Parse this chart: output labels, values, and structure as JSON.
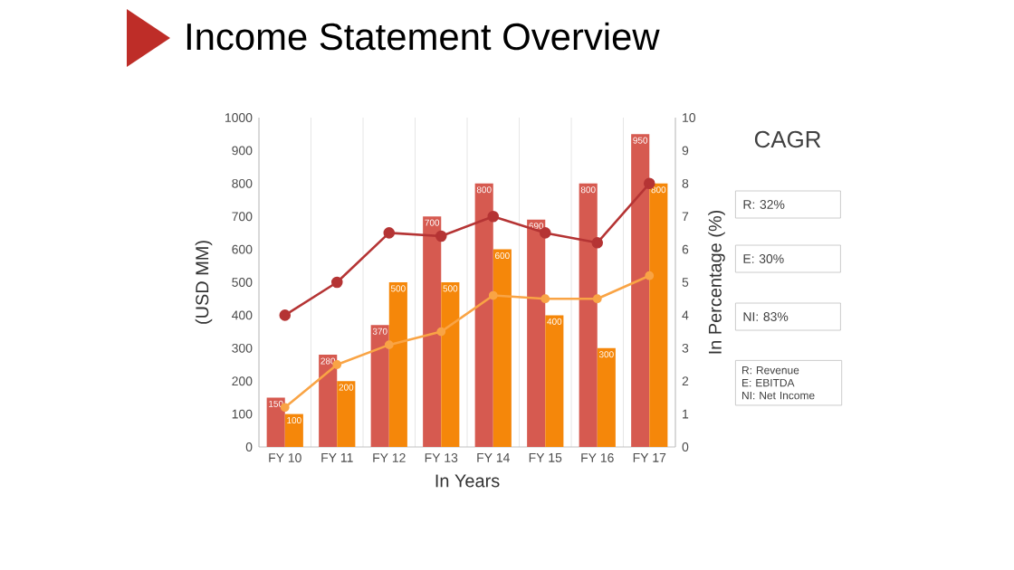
{
  "chart_data": {
    "type": "bar",
    "title": "Income Statement Overview",
    "xlabel": "In Years",
    "ylabel": "(USD MM)",
    "y2label": "In Percentage (%)",
    "categories": [
      "FY 10",
      "FY 11",
      "FY 12",
      "FY 13",
      "FY 14",
      "FY 15",
      "FY 16",
      "FY 17"
    ],
    "series": [
      {
        "color": "#d65a50",
        "values": [
          150,
          280,
          370,
          700,
          800,
          690,
          800,
          950
        ],
        "value_labels": [
          "150",
          "280",
          "370",
          "700",
          "800",
          "690",
          "800",
          "950"
        ]
      },
      {
        "color": "#f5870a",
        "values": [
          100,
          200,
          500,
          500,
          600,
          400,
          300,
          800
        ],
        "value_labels": [
          "100",
          "200",
          "500",
          "500",
          "600",
          "400",
          "300",
          "800"
        ]
      },
      {
        "type": "line",
        "axis": "y2",
        "color": "#b53434",
        "values": [
          4,
          5,
          6.5,
          6.4,
          7,
          6.5,
          6.2,
          8
        ]
      },
      {
        "type": "line",
        "axis": "y2",
        "color": "#f9a445",
        "values": [
          1.2,
          2.5,
          3.1,
          3.5,
          4.6,
          4.5,
          4.5,
          5.2
        ]
      }
    ],
    "ylim": [
      0,
      1000
    ],
    "yticks": [
      0,
      100,
      200,
      300,
      400,
      500,
      600,
      700,
      800,
      900,
      1000
    ],
    "y2lim": [
      0,
      10
    ],
    "y2ticks": [
      0,
      1,
      2,
      3,
      4,
      5,
      6,
      7,
      8,
      9,
      10
    ],
    "grid": "x",
    "marker": "circle",
    "line_style": "solid",
    "annotations": [
      "CAGR",
      "R: 32%",
      "E: 30%",
      "NI: 83%",
      "R: Revenue",
      "E: EBITDA",
      "NI: Net Income"
    ]
  }
}
